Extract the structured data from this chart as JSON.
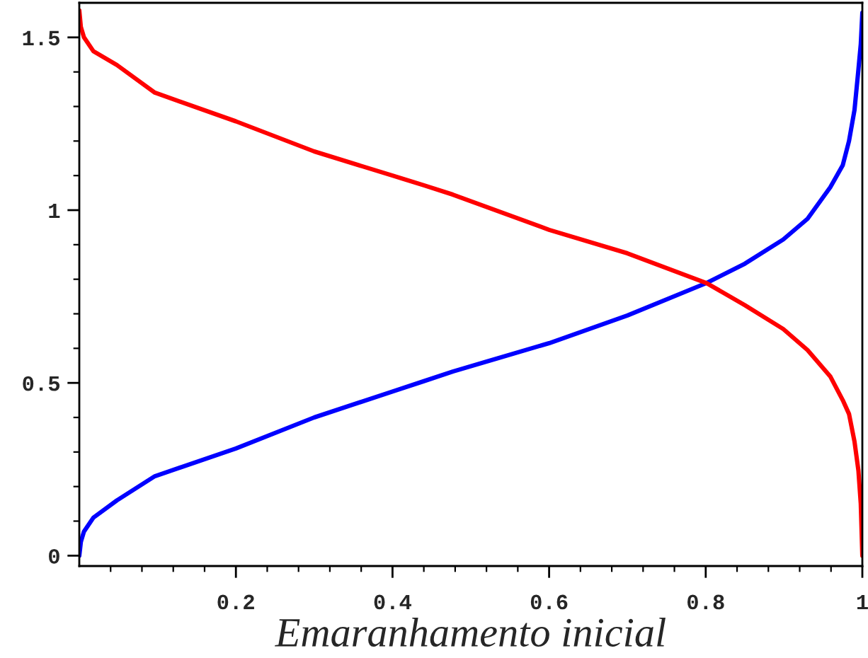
{
  "chart_data": {
    "type": "line",
    "xlabel": "Emaranhamento inicial",
    "xlim": [
      0,
      1
    ],
    "ylim": [
      -0.03,
      1.6
    ],
    "xticks": [
      {
        "value": 0.04,
        "label": null
      },
      {
        "value": 0.08,
        "label": null
      },
      {
        "value": 0.12,
        "label": null
      },
      {
        "value": 0.16,
        "label": null
      },
      0.2,
      {
        "value": 0.24,
        "label": null
      },
      {
        "value": 0.28,
        "label": null
      },
      {
        "value": 0.32,
        "label": null
      },
      {
        "value": 0.36,
        "label": null
      },
      0.4,
      {
        "value": 0.44,
        "label": null
      },
      {
        "value": 0.48,
        "label": null
      },
      {
        "value": 0.52,
        "label": null
      },
      {
        "value": 0.56,
        "label": null
      },
      0.6,
      {
        "value": 0.64,
        "label": null
      },
      {
        "value": 0.68,
        "label": null
      },
      {
        "value": 0.72,
        "label": null
      },
      {
        "value": 0.76,
        "label": null
      },
      0.8,
      {
        "value": 0.84,
        "label": null
      },
      {
        "value": 0.88,
        "label": null
      },
      {
        "value": 0.92,
        "label": null
      },
      {
        "value": 0.96,
        "label": null
      },
      1
    ],
    "yticks": [
      0,
      {
        "value": 0.1,
        "label": null
      },
      {
        "value": 0.2,
        "label": null
      },
      {
        "value": 0.3,
        "label": null
      },
      {
        "value": 0.4,
        "label": null
      },
      0.5,
      {
        "value": 0.6,
        "label": null
      },
      {
        "value": 0.7,
        "label": null
      },
      {
        "value": 0.8,
        "label": null
      },
      {
        "value": 0.9,
        "label": null
      },
      1,
      {
        "value": 1.1,
        "label": null
      },
      {
        "value": 1.2,
        "label": null
      },
      {
        "value": 1.3,
        "label": null
      },
      {
        "value": 1.4,
        "label": null
      },
      1.5
    ],
    "grid": false,
    "legend": false,
    "marker": "none",
    "line_style": "solid",
    "series": [
      {
        "color": "#0000ff",
        "x": [
          0,
          0.002,
          0.006,
          0.018,
          0.048,
          0.0965,
          0.2,
          0.3,
          0.4,
          0.44,
          0.477,
          0.6,
          0.7,
          0.801,
          0.85,
          0.899,
          0.93,
          0.959,
          0.975,
          0.983,
          0.99,
          0.995,
          0.998,
          1.0
        ],
        "values": [
          0,
          0.04,
          0.07,
          0.11,
          0.16,
          0.23,
          0.31,
          0.4,
          0.475,
          0.505,
          0.533,
          0.615,
          0.695,
          0.789,
          0.845,
          0.915,
          0.975,
          1.066,
          1.13,
          1.2,
          1.29,
          1.407,
          1.48,
          1.571
        ]
      },
      {
        "color": "#ff0000",
        "x": [
          0,
          0.002,
          0.006,
          0.018,
          0.048,
          0.0965,
          0.2,
          0.3,
          0.4,
          0.44,
          0.477,
          0.6,
          0.7,
          0.801,
          0.85,
          0.899,
          0.93,
          0.959,
          0.975,
          0.983,
          0.99,
          0.995,
          0.998,
          1.0
        ],
        "values": [
          1.578,
          1.53,
          1.5,
          1.46,
          1.42,
          1.34,
          1.257,
          1.17,
          1.1,
          1.072,
          1.045,
          0.943,
          0.875,
          0.789,
          0.725,
          0.656,
          0.595,
          0.519,
          0.45,
          0.41,
          0.33,
          0.246,
          0.15,
          0
        ]
      }
    ]
  }
}
